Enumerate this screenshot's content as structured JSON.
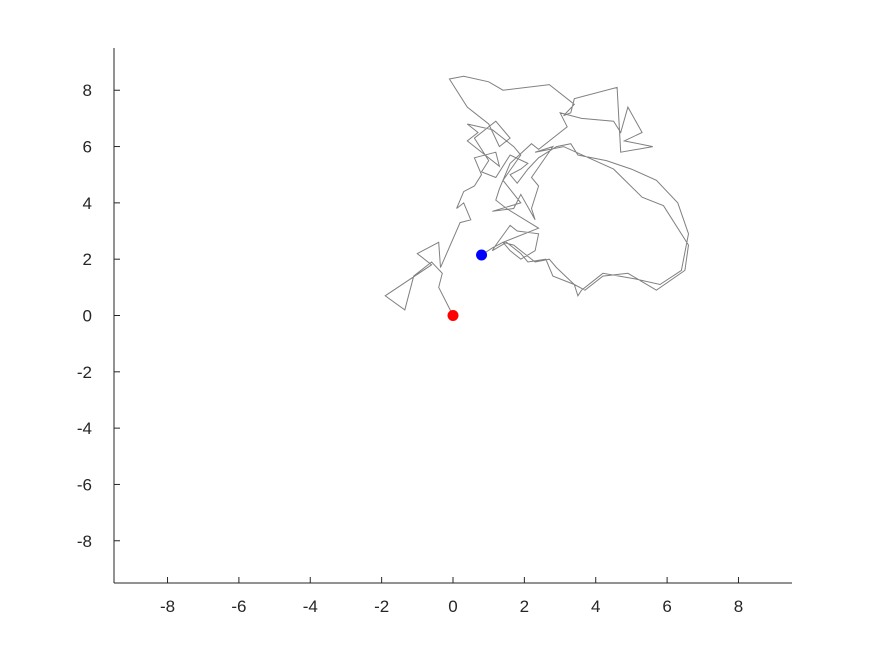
{
  "chart_data": {
    "type": "line",
    "title": "",
    "xlabel": "",
    "ylabel": "",
    "xlim": [
      -9.5,
      9.5
    ],
    "ylim": [
      -9.5,
      9.5
    ],
    "xticks": [
      "-8",
      "-6",
      "-4",
      "-2",
      "0",
      "2",
      "4",
      "6",
      "8"
    ],
    "yticks": [
      "8",
      "6",
      "4",
      "2",
      "0",
      "-2",
      "-4",
      "-6",
      "-8"
    ],
    "grid": false,
    "legend": "none",
    "colors": {
      "path": "#808080",
      "start": "#ff0000",
      "end": "#0000ff",
      "axis": "#262626"
    },
    "series": [
      {
        "points": [
          [
            0.0,
            0.0
          ],
          [
            -0.4,
            1.0
          ],
          [
            -0.3,
            1.5
          ],
          [
            -0.6,
            1.9
          ],
          [
            -1.1,
            1.4
          ],
          [
            -1.35,
            0.2
          ],
          [
            -1.9,
            0.7
          ],
          [
            -0.6,
            1.8
          ],
          [
            -1.0,
            2.2
          ],
          [
            -0.4,
            2.6
          ],
          [
            -0.35,
            1.7
          ],
          [
            0.2,
            3.3
          ],
          [
            0.5,
            3.4
          ],
          [
            0.3,
            4.0
          ],
          [
            0.1,
            3.8
          ],
          [
            0.3,
            4.4
          ],
          [
            0.6,
            4.6
          ],
          [
            0.8,
            5.0
          ],
          [
            0.6,
            5.6
          ],
          [
            1.2,
            5.8
          ],
          [
            1.3,
            5.3
          ],
          [
            0.9,
            5.7
          ],
          [
            0.4,
            6.2
          ],
          [
            0.7,
            6.5
          ],
          [
            0.4,
            6.8
          ],
          [
            1.1,
            6.6
          ],
          [
            1.7,
            6.0
          ],
          [
            1.9,
            5.7
          ],
          [
            1.4,
            4.8
          ],
          [
            1.9,
            4.0
          ],
          [
            1.1,
            3.7
          ],
          [
            1.7,
            3.8
          ],
          [
            1.9,
            4.3
          ],
          [
            2.3,
            3.4
          ],
          [
            2.2,
            3.8
          ],
          [
            2.4,
            4.6
          ],
          [
            2.2,
            4.9
          ],
          [
            2.8,
            6.0
          ],
          [
            2.3,
            5.8
          ],
          [
            3.1,
            6.0
          ],
          [
            4.5,
            5.2
          ],
          [
            5.3,
            4.2
          ],
          [
            5.9,
            3.9
          ],
          [
            6.6,
            2.5
          ],
          [
            6.5,
            1.6
          ],
          [
            5.7,
            0.9
          ],
          [
            4.9,
            1.5
          ],
          [
            4.2,
            1.4
          ],
          [
            3.7,
            0.9
          ],
          [
            3.4,
            1.1
          ],
          [
            2.8,
            1.4
          ],
          [
            2.6,
            2.0
          ],
          [
            2.1,
            1.9
          ],
          [
            1.9,
            2.2
          ],
          [
            1.5,
            2.6
          ],
          [
            1.1,
            2.3
          ],
          [
            1.2,
            2.5
          ],
          [
            1.6,
            3.2
          ],
          [
            1.8,
            3.0
          ],
          [
            2.4,
            2.9
          ],
          [
            2.3,
            2.3
          ],
          [
            1.9,
            2.0
          ],
          [
            1.6,
            2.3
          ],
          [
            1.4,
            2.6
          ],
          [
            2.4,
            3.1
          ],
          [
            1.5,
            3.8
          ],
          [
            1.2,
            4.1
          ],
          [
            1.3,
            4.5
          ],
          [
            1.6,
            5.4
          ],
          [
            2.2,
            6.1
          ],
          [
            2.4,
            5.9
          ],
          [
            3.2,
            6.7
          ],
          [
            3.0,
            7.2
          ],
          [
            3.6,
            7.0
          ],
          [
            4.5,
            6.9
          ],
          [
            4.7,
            6.5
          ],
          [
            4.9,
            7.4
          ],
          [
            5.3,
            6.5
          ],
          [
            4.8,
            6.2
          ],
          [
            5.6,
            6.0
          ],
          [
            4.7,
            5.8
          ],
          [
            4.6,
            8.1
          ],
          [
            3.4,
            7.7
          ],
          [
            3.3,
            7.2
          ],
          [
            3.1,
            7.1
          ],
          [
            3.4,
            7.5
          ],
          [
            2.7,
            8.2
          ],
          [
            1.4,
            8.0
          ],
          [
            1.0,
            8.3
          ],
          [
            0.3,
            8.5
          ],
          [
            -0.1,
            8.4
          ],
          [
            0.4,
            7.4
          ],
          [
            1.0,
            6.8
          ],
          [
            1.3,
            6.0
          ],
          [
            1.6,
            6.3
          ],
          [
            1.2,
            6.9
          ],
          [
            0.6,
            6.3
          ],
          [
            1.0,
            5.5
          ],
          [
            0.8,
            5.1
          ],
          [
            1.2,
            4.9
          ],
          [
            1.6,
            5.7
          ],
          [
            2.1,
            5.4
          ],
          [
            1.9,
            5.2
          ],
          [
            1.6,
            5.0
          ],
          [
            1.8,
            4.7
          ],
          [
            2.1,
            5.2
          ],
          [
            2.4,
            5.6
          ],
          [
            2.9,
            6.0
          ],
          [
            3.3,
            6.1
          ],
          [
            3.5,
            5.7
          ],
          [
            4.3,
            5.5
          ],
          [
            5.0,
            5.2
          ],
          [
            5.7,
            4.8
          ],
          [
            6.3,
            4.0
          ],
          [
            6.6,
            2.9
          ],
          [
            6.4,
            1.6
          ],
          [
            5.8,
            1.1
          ],
          [
            5.1,
            1.3
          ],
          [
            4.2,
            1.5
          ],
          [
            3.6,
            0.9
          ],
          [
            3.5,
            0.7
          ],
          [
            3.4,
            1.1
          ],
          [
            2.9,
            1.7
          ],
          [
            2.7,
            2.0
          ],
          [
            2.3,
            1.9
          ],
          [
            2.0,
            2.2
          ],
          [
            1.7,
            2.5
          ],
          [
            1.4,
            2.6
          ],
          [
            1.1,
            2.4
          ],
          [
            0.8,
            2.15
          ]
        ]
      }
    ],
    "start_point": {
      "x": 0.0,
      "y": 0.0
    },
    "end_point": {
      "x": 0.8,
      "y": 2.15
    }
  }
}
